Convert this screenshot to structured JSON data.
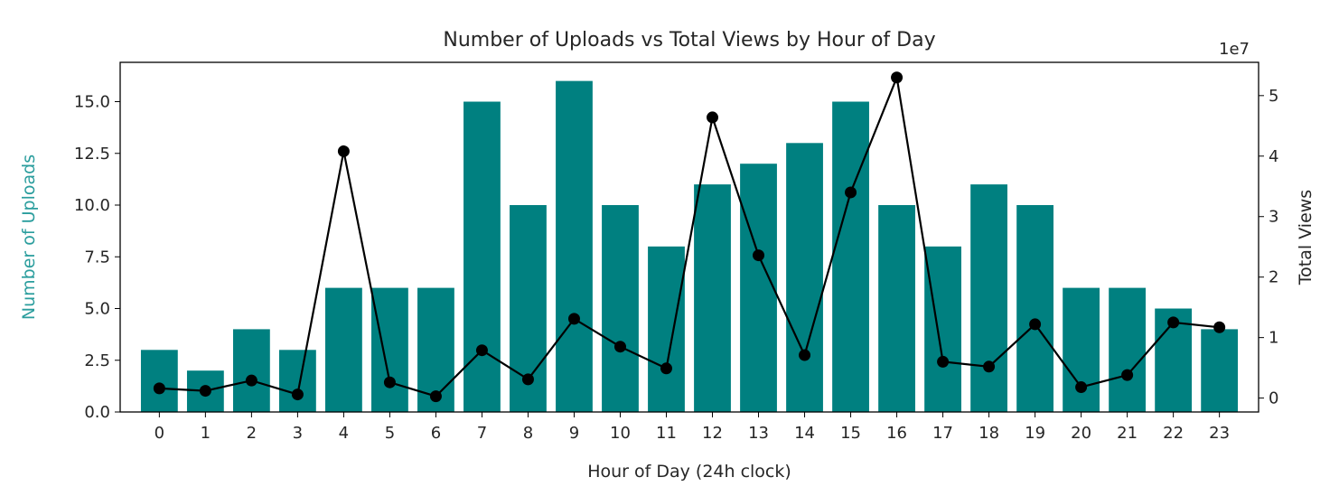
{
  "chart_data": {
    "type": "bar",
    "title": "Number of Uploads vs Total Views by Hour of Day",
    "xlabel": "Hour of Day (24h clock)",
    "ylabel_left": "Number of Uploads",
    "ylabel_right": "Total Views",
    "right_axis_multiplier": "1e7",
    "categories": [
      "0",
      "1",
      "2",
      "3",
      "4",
      "5",
      "6",
      "7",
      "8",
      "9",
      "10",
      "11",
      "12",
      "13",
      "14",
      "15",
      "16",
      "17",
      "18",
      "19",
      "20",
      "21",
      "22",
      "23"
    ],
    "series": [
      {
        "type": "bar",
        "axis": "left",
        "values": [
          3,
          2,
          4,
          3,
          6,
          6,
          6,
          15,
          10,
          16,
          10,
          8,
          11,
          12,
          13,
          15,
          10,
          8,
          11,
          10,
          6,
          6,
          5,
          4
        ]
      },
      {
        "type": "line",
        "axis": "right",
        "values": [
          1.6,
          1.2,
          2.9,
          0.6,
          40.8,
          2.6,
          0.3,
          7.9,
          3.1,
          13.1,
          8.5,
          4.9,
          46.4,
          23.6,
          7.1,
          34.0,
          53.0,
          6.0,
          5.2,
          12.2,
          1.8,
          3.8,
          12.5,
          11.7
        ]
      }
    ],
    "ylim_left": [
      0,
      16.9
    ],
    "ylim_right": [
      -2.3,
      55.5
    ],
    "yticks_left": [
      "0.0",
      "2.5",
      "5.0",
      "7.5",
      "10.0",
      "12.5",
      "15.0"
    ],
    "yticks_left_values": [
      0,
      2.5,
      5,
      7.5,
      10,
      12.5,
      15
    ],
    "yticks_right": [
      "0",
      "1",
      "2",
      "3",
      "4",
      "5"
    ],
    "yticks_right_values": [
      0,
      10,
      20,
      30,
      40,
      50
    ],
    "grid": false,
    "colors": {
      "bar": "#008080",
      "line": "#000000",
      "left_axis_label": "#2a9d9d",
      "text": "#262626"
    }
  }
}
